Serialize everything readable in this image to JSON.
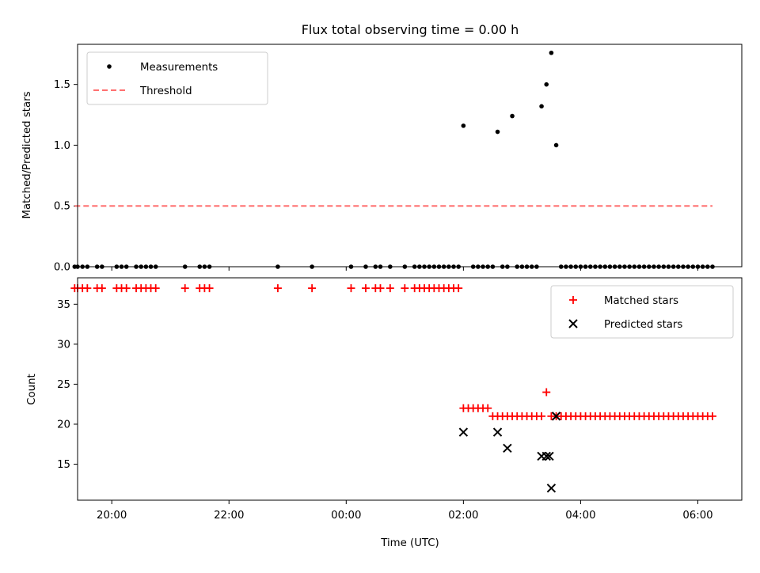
{
  "chart_data": [
    {
      "panel": "top",
      "type": "scatter",
      "title": "Flux total observing time = 0.00 h",
      "xlabel": "",
      "ylabel": "Matched/Predicted stars",
      "xlim": [
        "19:25",
        "06:45"
      ],
      "ylim": [
        0,
        1.83
      ],
      "yticks": [
        0.0,
        0.5,
        1.0,
        1.5
      ],
      "ytick_labels": [
        "0.0",
        "0.5",
        "1.0",
        "1.5"
      ],
      "legend_position": "top-left",
      "series": [
        {
          "name": "Measurements",
          "kind": "points",
          "color": "#000000",
          "points": [
            [
              "19:22",
              0
            ],
            [
              "19:25",
              0
            ],
            [
              "19:30",
              0
            ],
            [
              "19:35",
              0
            ],
            [
              "19:45",
              0
            ],
            [
              "19:50",
              0
            ],
            [
              "20:05",
              0
            ],
            [
              "20:10",
              0
            ],
            [
              "20:15",
              0
            ],
            [
              "20:25",
              0
            ],
            [
              "20:30",
              0
            ],
            [
              "20:35",
              0
            ],
            [
              "20:40",
              0
            ],
            [
              "20:45",
              0
            ],
            [
              "21:15",
              0
            ],
            [
              "21:30",
              0
            ],
            [
              "21:35",
              0
            ],
            [
              "21:40",
              0
            ],
            [
              "22:50",
              0
            ],
            [
              "23:25",
              0
            ],
            [
              "00:05",
              0
            ],
            [
              "00:20",
              0
            ],
            [
              "00:30",
              0
            ],
            [
              "00:35",
              0
            ],
            [
              "00:45",
              0
            ],
            [
              "01:00",
              0
            ],
            [
              "01:10",
              0
            ],
            [
              "01:15",
              0
            ],
            [
              "01:20",
              0
            ],
            [
              "01:25",
              0
            ],
            [
              "01:30",
              0
            ],
            [
              "01:35",
              0
            ],
            [
              "01:40",
              0
            ],
            [
              "01:45",
              0
            ],
            [
              "01:50",
              0
            ],
            [
              "01:55",
              0
            ],
            [
              "02:00",
              1.16
            ],
            [
              "02:10",
              0
            ],
            [
              "02:15",
              0
            ],
            [
              "02:20",
              0
            ],
            [
              "02:25",
              0
            ],
            [
              "02:30",
              0
            ],
            [
              "02:35",
              1.11
            ],
            [
              "02:40",
              0
            ],
            [
              "02:45",
              0
            ],
            [
              "02:50",
              1.24
            ],
            [
              "02:55",
              0
            ],
            [
              "03:00",
              0
            ],
            [
              "03:05",
              0
            ],
            [
              "03:10",
              0
            ],
            [
              "03:15",
              0
            ],
            [
              "03:20",
              1.32
            ],
            [
              "03:25",
              1.5
            ],
            [
              "03:30",
              1.76
            ],
            [
              "03:35",
              1.0
            ],
            [
              "03:40",
              0
            ],
            [
              "03:45",
              0
            ],
            [
              "03:50",
              0
            ],
            [
              "03:55",
              0
            ],
            [
              "04:00",
              0
            ],
            [
              "04:05",
              0
            ],
            [
              "04:10",
              0
            ],
            [
              "04:15",
              0
            ],
            [
              "04:20",
              0
            ],
            [
              "04:25",
              0
            ],
            [
              "04:30",
              0
            ],
            [
              "04:35",
              0
            ],
            [
              "04:40",
              0
            ],
            [
              "04:45",
              0
            ],
            [
              "04:50",
              0
            ],
            [
              "04:55",
              0
            ],
            [
              "05:00",
              0
            ],
            [
              "05:05",
              0
            ],
            [
              "05:10",
              0
            ],
            [
              "05:15",
              0
            ],
            [
              "05:20",
              0
            ],
            [
              "05:25",
              0
            ],
            [
              "05:30",
              0
            ],
            [
              "05:35",
              0
            ],
            [
              "05:40",
              0
            ],
            [
              "05:45",
              0
            ],
            [
              "05:50",
              0
            ],
            [
              "05:55",
              0
            ],
            [
              "06:00",
              0
            ],
            [
              "06:05",
              0
            ],
            [
              "06:10",
              0
            ],
            [
              "06:15",
              0
            ]
          ]
        },
        {
          "name": "Threshold",
          "kind": "dashed-line",
          "color": "#ff7070",
          "points": [
            [
              "19:22",
              0.5
            ],
            [
              "06:15",
              0.5
            ]
          ]
        }
      ]
    },
    {
      "panel": "bottom",
      "type": "scatter",
      "title": "",
      "xlabel": "Time (UTC)",
      "ylabel": "Count",
      "xlim": [
        "19:25",
        "06:45"
      ],
      "ylim": [
        10.5,
        38.3
      ],
      "yticks": [
        15,
        20,
        25,
        30,
        35
      ],
      "ytick_labels": [
        "15",
        "20",
        "25",
        "30",
        "35"
      ],
      "xticks": [
        "20:00",
        "22:00",
        "00:00",
        "02:00",
        "04:00",
        "06:00"
      ],
      "legend_position": "top-right",
      "series": [
        {
          "name": "Matched stars",
          "kind": "plus",
          "color": "#ff0000",
          "points": [
            [
              "19:22",
              37
            ],
            [
              "19:25",
              37
            ],
            [
              "19:30",
              37
            ],
            [
              "19:35",
              37
            ],
            [
              "19:45",
              37
            ],
            [
              "19:50",
              37
            ],
            [
              "20:05",
              37
            ],
            [
              "20:10",
              37
            ],
            [
              "20:15",
              37
            ],
            [
              "20:25",
              37
            ],
            [
              "20:30",
              37
            ],
            [
              "20:35",
              37
            ],
            [
              "20:40",
              37
            ],
            [
              "20:45",
              37
            ],
            [
              "21:15",
              37
            ],
            [
              "21:30",
              37
            ],
            [
              "21:35",
              37
            ],
            [
              "21:40",
              37
            ],
            [
              "22:50",
              37
            ],
            [
              "23:25",
              37
            ],
            [
              "00:05",
              37
            ],
            [
              "00:20",
              37
            ],
            [
              "00:30",
              37
            ],
            [
              "00:35",
              37
            ],
            [
              "00:45",
              37
            ],
            [
              "01:00",
              37
            ],
            [
              "01:10",
              37
            ],
            [
              "01:15",
              37
            ],
            [
              "01:20",
              37
            ],
            [
              "01:25",
              37
            ],
            [
              "01:30",
              37
            ],
            [
              "01:35",
              37
            ],
            [
              "01:40",
              37
            ],
            [
              "01:45",
              37
            ],
            [
              "01:50",
              37
            ],
            [
              "01:55",
              37
            ],
            [
              "02:00",
              22
            ],
            [
              "02:05",
              22
            ],
            [
              "02:10",
              22
            ],
            [
              "02:15",
              22
            ],
            [
              "02:20",
              22
            ],
            [
              "02:25",
              22
            ],
            [
              "02:30",
              21
            ],
            [
              "02:35",
              21
            ],
            [
              "02:40",
              21
            ],
            [
              "02:45",
              21
            ],
            [
              "02:50",
              21
            ],
            [
              "02:55",
              21
            ],
            [
              "03:00",
              21
            ],
            [
              "03:05",
              21
            ],
            [
              "03:10",
              21
            ],
            [
              "03:15",
              21
            ],
            [
              "03:20",
              21
            ],
            [
              "03:25",
              24
            ],
            [
              "03:30",
              21
            ],
            [
              "03:35",
              21
            ],
            [
              "03:40",
              21
            ],
            [
              "03:45",
              21
            ],
            [
              "03:50",
              21
            ],
            [
              "03:55",
              21
            ],
            [
              "04:00",
              21
            ],
            [
              "04:05",
              21
            ],
            [
              "04:10",
              21
            ],
            [
              "04:15",
              21
            ],
            [
              "04:20",
              21
            ],
            [
              "04:25",
              21
            ],
            [
              "04:30",
              21
            ],
            [
              "04:35",
              21
            ],
            [
              "04:40",
              21
            ],
            [
              "04:45",
              21
            ],
            [
              "04:50",
              21
            ],
            [
              "04:55",
              21
            ],
            [
              "05:00",
              21
            ],
            [
              "05:05",
              21
            ],
            [
              "05:10",
              21
            ],
            [
              "05:15",
              21
            ],
            [
              "05:20",
              21
            ],
            [
              "05:25",
              21
            ],
            [
              "05:30",
              21
            ],
            [
              "05:35",
              21
            ],
            [
              "05:40",
              21
            ],
            [
              "05:45",
              21
            ],
            [
              "05:50",
              21
            ],
            [
              "05:55",
              21
            ],
            [
              "06:00",
              21
            ],
            [
              "06:05",
              21
            ],
            [
              "06:10",
              21
            ],
            [
              "06:15",
              21
            ]
          ]
        },
        {
          "name": "Predicted stars",
          "kind": "x",
          "color": "#000000",
          "points": [
            [
              "02:00",
              19
            ],
            [
              "02:35",
              19
            ],
            [
              "02:45",
              17
            ],
            [
              "03:20",
              16
            ],
            [
              "03:25",
              16
            ],
            [
              "03:28",
              16
            ],
            [
              "03:30",
              12
            ],
            [
              "03:35",
              21
            ]
          ]
        }
      ]
    }
  ]
}
